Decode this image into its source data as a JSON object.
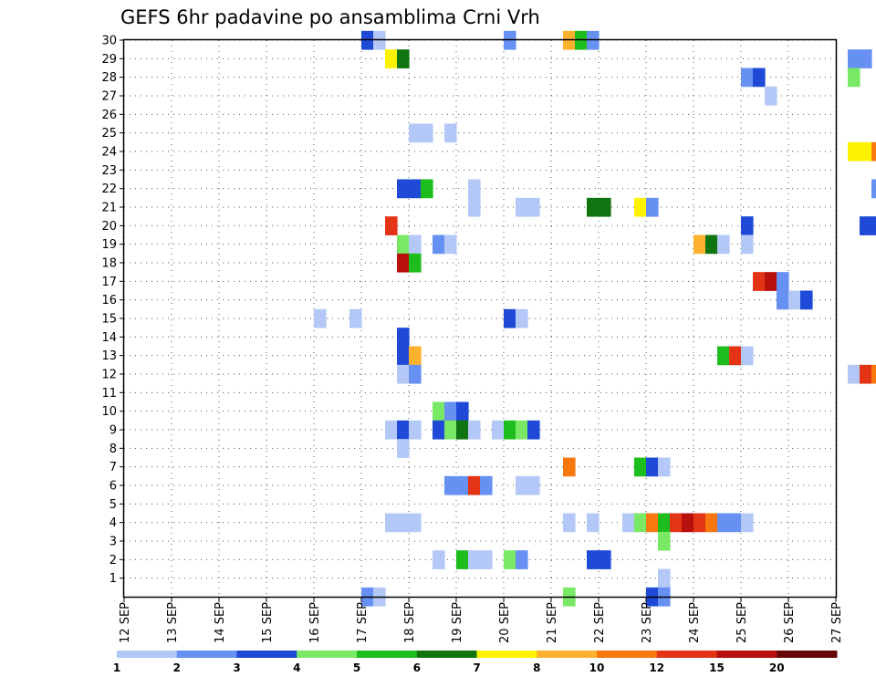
{
  "chart_data": {
    "type": "heatmap",
    "title": "GEFS 6hr padavine po ansamblima Crni Vrh",
    "xlabel": "",
    "ylabel": "",
    "x_tick_labels": [
      "12 SEP",
      "13 SEP",
      "14 SEP",
      "15 SEP",
      "16 SEP",
      "17 SEP",
      "18 SEP",
      "19 SEP",
      "20 SEP",
      "21 SEP",
      "22 SEP",
      "23 SEP",
      "24 SEP",
      "25 SEP",
      "26 SEP",
      "27 SEP"
    ],
    "xlim_days": [
      12,
      27
    ],
    "y_tick_labels": [
      "1",
      "2",
      "3",
      "4",
      "5",
      "6",
      "7",
      "8",
      "9",
      "10",
      "11",
      "12",
      "13",
      "14",
      "15",
      "16",
      "17",
      "18",
      "19",
      "20",
      "21",
      "22",
      "23",
      "24",
      "25",
      "26",
      "27",
      "28",
      "29",
      "30"
    ],
    "ylim": [
      0,
      30
    ],
    "grid": true,
    "colorbar": {
      "colors": [
        "#b4c8f8",
        "#6690f2",
        "#1f4ad8",
        "#78e865",
        "#1ebd1e",
        "#107510",
        "#fef200",
        "#fdb12e",
        "#f8780f",
        "#e43416",
        "#b8100c",
        "#640808"
      ],
      "tick_labels": [
        "1",
        "2",
        "3",
        "4",
        "5",
        "6",
        "7",
        "8",
        "10",
        "12",
        "15",
        "20"
      ],
      "unit_note": ""
    },
    "cells_note": "each cell: [member, day-of-September at 6h step start, color class index 1..12]",
    "cells": [
      [
        30,
        17.0,
        3
      ],
      [
        30,
        17.25,
        1
      ],
      [
        30,
        20.0,
        2
      ],
      [
        30,
        21.25,
        8
      ],
      [
        30,
        21.5,
        5
      ],
      [
        30,
        21.75,
        2
      ],
      [
        29,
        17.5,
        7
      ],
      [
        29,
        17.75,
        6
      ],
      [
        29,
        27.25,
        2
      ],
      [
        29,
        27.5,
        2
      ],
      [
        28,
        25.0,
        2
      ],
      [
        28,
        25.25,
        3
      ],
      [
        28,
        27.25,
        4
      ],
      [
        27,
        25.5,
        1
      ],
      [
        25,
        18.0,
        1
      ],
      [
        25,
        18.25,
        1
      ],
      [
        25,
        18.75,
        1
      ],
      [
        24,
        27.25,
        7
      ],
      [
        24,
        27.5,
        7
      ],
      [
        24,
        27.75,
        9
      ],
      [
        22,
        17.75,
        3
      ],
      [
        22,
        18.0,
        3
      ],
      [
        22,
        18.25,
        5
      ],
      [
        22,
        19.25,
        1
      ],
      [
        22,
        27.75,
        2
      ],
      [
        21,
        19.25,
        1
      ],
      [
        21,
        20.25,
        1
      ],
      [
        21,
        20.5,
        1
      ],
      [
        21,
        21.75,
        6
      ],
      [
        21,
        22.0,
        6
      ],
      [
        21,
        22.75,
        7
      ],
      [
        21,
        23.0,
        2
      ],
      [
        20,
        17.5,
        10
      ],
      [
        20,
        25.0,
        3
      ],
      [
        20,
        27.5,
        3
      ],
      [
        20,
        27.75,
        3
      ],
      [
        19,
        17.75,
        4
      ],
      [
        19,
        18.0,
        1
      ],
      [
        19,
        18.5,
        2
      ],
      [
        19,
        18.75,
        1
      ],
      [
        19,
        24.0,
        8
      ],
      [
        19,
        24.25,
        6
      ],
      [
        19,
        24.5,
        1
      ],
      [
        19,
        25.0,
        1
      ],
      [
        18,
        17.75,
        11
      ],
      [
        18,
        18.0,
        5
      ],
      [
        17,
        25.25,
        10
      ],
      [
        17,
        25.5,
        11
      ],
      [
        17,
        25.75,
        2
      ],
      [
        16,
        25.75,
        2
      ],
      [
        16,
        26.0,
        1
      ],
      [
        16,
        26.25,
        3
      ],
      [
        15,
        16.0,
        1
      ],
      [
        15,
        16.75,
        1
      ],
      [
        15,
        20.0,
        3
      ],
      [
        15,
        20.25,
        1
      ],
      [
        14,
        17.75,
        3
      ],
      [
        13,
        17.75,
        3
      ],
      [
        13,
        18.0,
        8
      ],
      [
        13,
        24.5,
        5
      ],
      [
        13,
        24.75,
        10
      ],
      [
        13,
        25.0,
        1
      ],
      [
        12,
        17.75,
        1
      ],
      [
        12,
        18.0,
        2
      ],
      [
        12,
        27.25,
        1
      ],
      [
        12,
        27.5,
        10
      ],
      [
        12,
        27.75,
        9
      ],
      [
        10,
        18.5,
        4
      ],
      [
        10,
        18.75,
        2
      ],
      [
        10,
        19.0,
        3
      ],
      [
        9,
        17.5,
        1
      ],
      [
        9,
        17.75,
        3
      ],
      [
        9,
        18.0,
        1
      ],
      [
        9,
        18.5,
        3
      ],
      [
        9,
        18.75,
        4
      ],
      [
        9,
        19.0,
        6
      ],
      [
        9,
        19.25,
        1
      ],
      [
        9,
        19.75,
        1
      ],
      [
        9,
        20.0,
        5
      ],
      [
        9,
        20.25,
        4
      ],
      [
        9,
        20.5,
        3
      ],
      [
        8,
        17.75,
        1
      ],
      [
        7,
        21.25,
        9
      ],
      [
        7,
        22.75,
        5
      ],
      [
        7,
        23.0,
        3
      ],
      [
        7,
        23.25,
        1
      ],
      [
        6,
        18.75,
        2
      ],
      [
        6,
        19.0,
        2
      ],
      [
        6,
        19.25,
        10
      ],
      [
        6,
        19.5,
        2
      ],
      [
        6,
        20.25,
        1
      ],
      [
        6,
        20.5,
        1
      ],
      [
        4,
        17.5,
        1
      ],
      [
        4,
        17.75,
        1
      ],
      [
        4,
        18.0,
        1
      ],
      [
        4,
        21.25,
        1
      ],
      [
        4,
        21.75,
        1
      ],
      [
        4,
        22.5,
        1
      ],
      [
        4,
        22.75,
        4
      ],
      [
        4,
        23.0,
        9
      ],
      [
        4,
        23.25,
        5
      ],
      [
        4,
        23.5,
        10
      ],
      [
        4,
        23.75,
        11
      ],
      [
        4,
        24.0,
        10
      ],
      [
        4,
        24.25,
        9
      ],
      [
        4,
        24.5,
        2
      ],
      [
        4,
        24.75,
        2
      ],
      [
        4,
        25.0,
        1
      ],
      [
        3,
        23.25,
        4
      ],
      [
        2,
        18.5,
        1
      ],
      [
        2,
        19.0,
        5
      ],
      [
        2,
        19.25,
        1
      ],
      [
        2,
        19.5,
        1
      ],
      [
        2,
        20.0,
        4
      ],
      [
        2,
        20.25,
        2
      ],
      [
        2,
        21.75,
        3
      ],
      [
        2,
        22.0,
        3
      ],
      [
        1,
        23.25,
        1
      ],
      [
        0,
        17.0,
        2
      ],
      [
        0,
        17.25,
        1
      ],
      [
        0,
        21.25,
        4
      ],
      [
        0,
        23.0,
        3
      ],
      [
        0,
        23.25,
        2
      ]
    ]
  }
}
